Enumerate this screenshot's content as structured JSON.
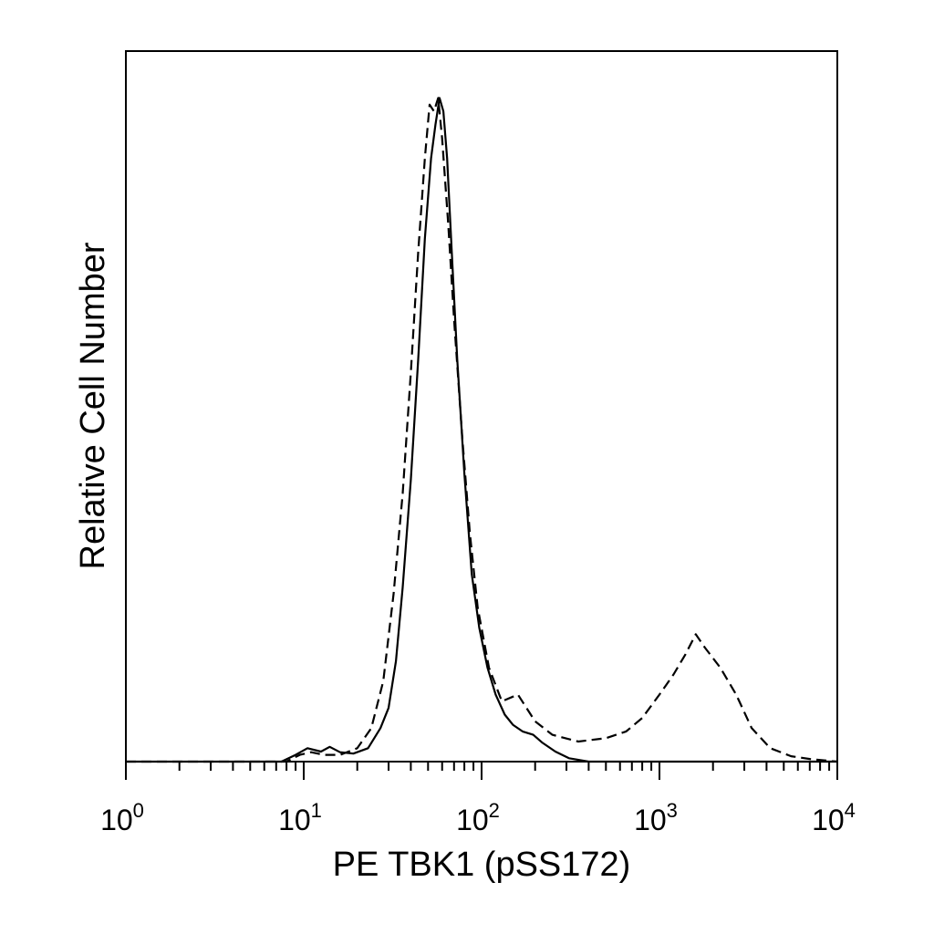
{
  "chart_data": {
    "type": "line",
    "title": "",
    "xlabel": "PE TBK1 (pSS172)",
    "ylabel": "Relative Cell Number",
    "xscale": "log",
    "xlim": [
      1,
      10000
    ],
    "ylim": [
      0,
      1.0
    ],
    "grid": false,
    "x_ticks": [
      {
        "value": 1,
        "base": "10",
        "exp": "0"
      },
      {
        "value": 10,
        "base": "10",
        "exp": "1"
      },
      {
        "value": 100,
        "base": "10",
        "exp": "2"
      },
      {
        "value": 1000,
        "base": "10",
        "exp": "3"
      },
      {
        "value": 10000,
        "base": "10",
        "exp": "4"
      }
    ],
    "series": [
      {
        "style": "solid",
        "color": "#000000",
        "points": [
          [
            1,
            0
          ],
          [
            7.5,
            0
          ],
          [
            9,
            0.01
          ],
          [
            10.5,
            0.02
          ],
          [
            12.5,
            0.015
          ],
          [
            14,
            0.022
          ],
          [
            16,
            0.014
          ],
          [
            19,
            0.012
          ],
          [
            23,
            0.02
          ],
          [
            27,
            0.05
          ],
          [
            30,
            0.08
          ],
          [
            33,
            0.15
          ],
          [
            36,
            0.26
          ],
          [
            40,
            0.42
          ],
          [
            44,
            0.6
          ],
          [
            48,
            0.78
          ],
          [
            52,
            0.9
          ],
          [
            55,
            0.95
          ],
          [
            58,
            0.99
          ],
          [
            61,
            0.97
          ],
          [
            64,
            0.9
          ],
          [
            68,
            0.76
          ],
          [
            73,
            0.6
          ],
          [
            80,
            0.43
          ],
          [
            88,
            0.28
          ],
          [
            97,
            0.2
          ],
          [
            108,
            0.14
          ],
          [
            120,
            0.1
          ],
          [
            135,
            0.07
          ],
          [
            150,
            0.055
          ],
          [
            170,
            0.045
          ],
          [
            195,
            0.04
          ],
          [
            220,
            0.028
          ],
          [
            260,
            0.015
          ],
          [
            310,
            0.005
          ],
          [
            400,
            0
          ],
          [
            1000,
            0
          ],
          [
            10000,
            0
          ]
        ]
      },
      {
        "style": "dashed",
        "color": "#000000",
        "points": [
          [
            1,
            0
          ],
          [
            8,
            0
          ],
          [
            9.5,
            0.01
          ],
          [
            11,
            0.014
          ],
          [
            13,
            0.01
          ],
          [
            16,
            0.01
          ],
          [
            20,
            0.02
          ],
          [
            24,
            0.05
          ],
          [
            28,
            0.12
          ],
          [
            32,
            0.25
          ],
          [
            36,
            0.4
          ],
          [
            40,
            0.58
          ],
          [
            44,
            0.76
          ],
          [
            48,
            0.9
          ],
          [
            51,
            0.98
          ],
          [
            54,
            0.97
          ],
          [
            57,
            0.99
          ],
          [
            60,
            0.93
          ],
          [
            65,
            0.8
          ],
          [
            70,
            0.66
          ],
          [
            78,
            0.48
          ],
          [
            86,
            0.34
          ],
          [
            95,
            0.23
          ],
          [
            110,
            0.14
          ],
          [
            130,
            0.09
          ],
          [
            160,
            0.1
          ],
          [
            200,
            0.06
          ],
          [
            250,
            0.04
          ],
          [
            350,
            0.03
          ],
          [
            500,
            0.035
          ],
          [
            650,
            0.045
          ],
          [
            800,
            0.065
          ],
          [
            1000,
            0.1
          ],
          [
            1200,
            0.13
          ],
          [
            1400,
            0.16
          ],
          [
            1600,
            0.19
          ],
          [
            1800,
            0.17
          ],
          [
            2200,
            0.14
          ],
          [
            2700,
            0.1
          ],
          [
            3300,
            0.05
          ],
          [
            4200,
            0.02
          ],
          [
            5500,
            0.008
          ],
          [
            7000,
            0.004
          ],
          [
            10000,
            0
          ]
        ]
      }
    ]
  }
}
